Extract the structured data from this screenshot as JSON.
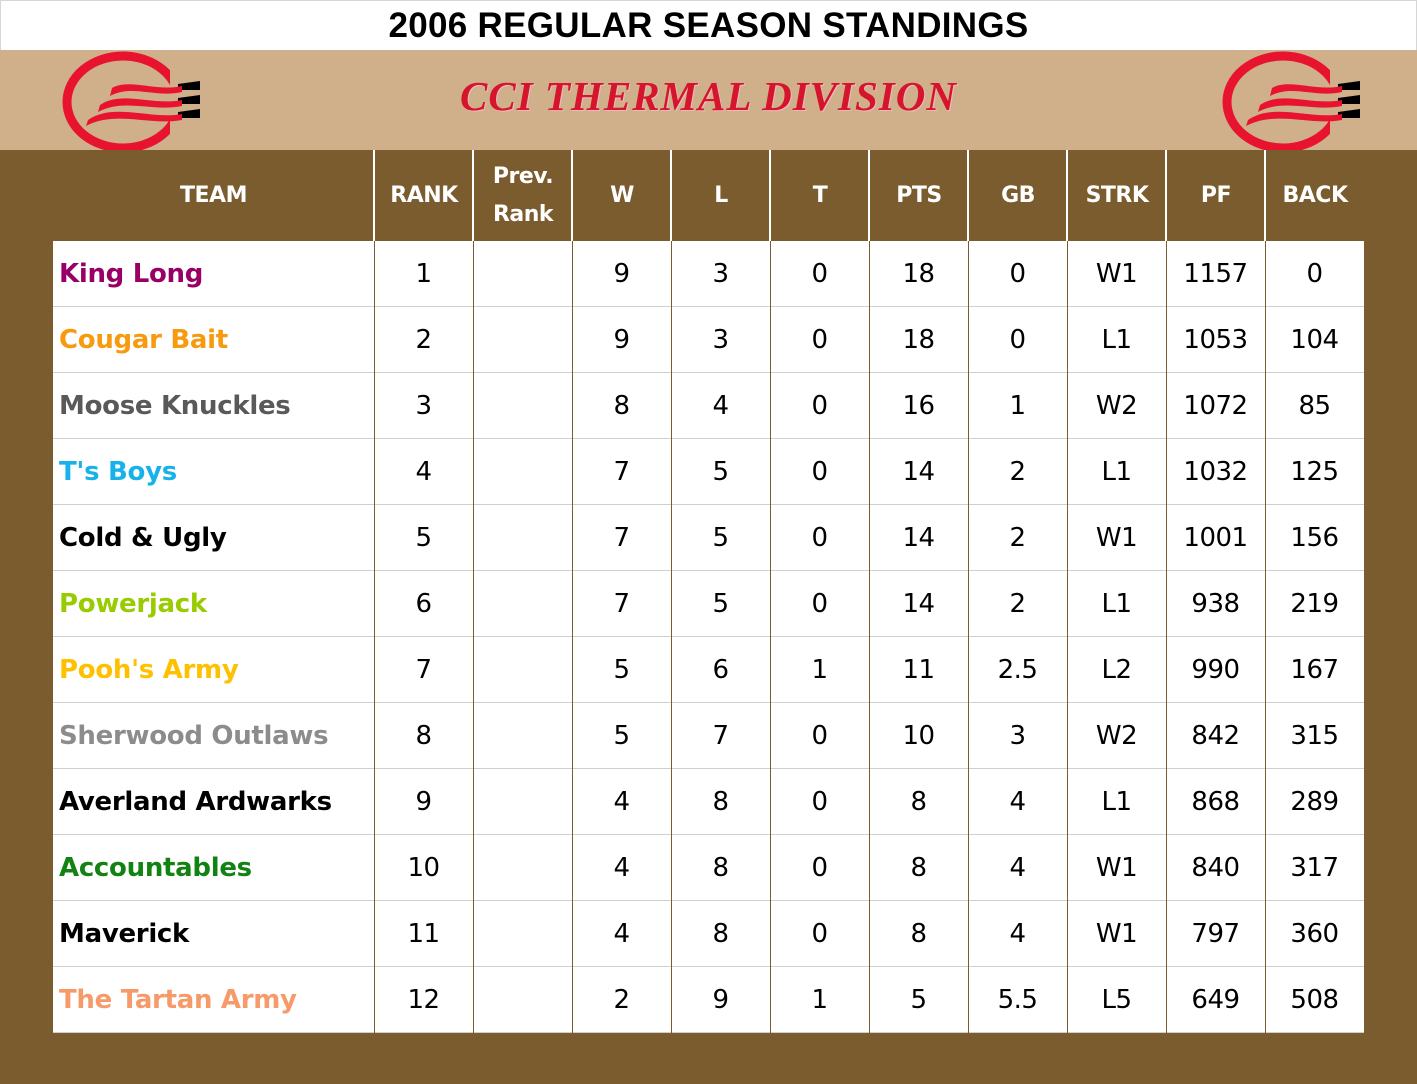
{
  "title": "2006 REGULAR SEASON STANDINGS",
  "banner": {
    "division_name": "CCI THERMAL DIVISION",
    "logo_left": "cci-thermal-logo",
    "logo_right": "cci-thermal-logo",
    "colors": {
      "banner_bg": "#CFB08A",
      "division_text": "#D4152B",
      "logo_red": "#E8132F",
      "body_bg": "#7B5C2E"
    }
  },
  "table": {
    "columns": [
      {
        "key": "team",
        "label": "TEAM"
      },
      {
        "key": "rank",
        "label": "RANK"
      },
      {
        "key": "prev_rank",
        "label": "Prev. Rank",
        "label_line1": "Prev.",
        "label_line2": "Rank"
      },
      {
        "key": "w",
        "label": "W"
      },
      {
        "key": "l",
        "label": "L"
      },
      {
        "key": "t",
        "label": "T"
      },
      {
        "key": "pts",
        "label": "PTS"
      },
      {
        "key": "gb",
        "label": "GB"
      },
      {
        "key": "strk",
        "label": "STRK"
      },
      {
        "key": "pf",
        "label": "PF"
      },
      {
        "key": "back",
        "label": "BACK"
      }
    ],
    "rows": [
      {
        "team": "King Long",
        "color": "#990066",
        "rank": "1",
        "prev_rank": "",
        "w": "9",
        "l": "3",
        "t": "0",
        "pts": "18",
        "gb": "0",
        "strk": "W1",
        "pf": "1157",
        "back": "0"
      },
      {
        "team": "Cougar Bait",
        "color": "#F79A0E",
        "rank": "2",
        "prev_rank": "",
        "w": "9",
        "l": "3",
        "t": "0",
        "pts": "18",
        "gb": "0",
        "strk": "L1",
        "pf": "1053",
        "back": "104"
      },
      {
        "team": "Moose Knuckles",
        "color": "#595959",
        "rank": "3",
        "prev_rank": "",
        "w": "8",
        "l": "4",
        "t": "0",
        "pts": "16",
        "gb": "1",
        "strk": "W2",
        "pf": "1072",
        "back": "85"
      },
      {
        "team": "T's Boys",
        "color": "#17B2EA",
        "rank": "4",
        "prev_rank": "",
        "w": "7",
        "l": "5",
        "t": "0",
        "pts": "14",
        "gb": "2",
        "strk": "L1",
        "pf": "1032",
        "back": "125"
      },
      {
        "team": "Cold & Ugly",
        "color": "#000000",
        "rank": "5",
        "prev_rank": "",
        "w": "7",
        "l": "5",
        "t": "0",
        "pts": "14",
        "gb": "2",
        "strk": "W1",
        "pf": "1001",
        "back": "156"
      },
      {
        "team": "Powerjack",
        "color": "#99CC00",
        "rank": "6",
        "prev_rank": "",
        "w": "7",
        "l": "5",
        "t": "0",
        "pts": "14",
        "gb": "2",
        "strk": "L1",
        "pf": "938",
        "back": "219"
      },
      {
        "team": "Pooh's Army",
        "color": "#FFC000",
        "rank": "7",
        "prev_rank": "",
        "w": "5",
        "l": "6",
        "t": "1",
        "pts": "11",
        "gb": "2.5",
        "strk": "L2",
        "pf": "990",
        "back": "167"
      },
      {
        "team": "Sherwood Outlaws",
        "color": "#8C8C8C",
        "rank": "8",
        "prev_rank": "",
        "w": "5",
        "l": "7",
        "t": "0",
        "pts": "10",
        "gb": "3",
        "strk": "W2",
        "pf": "842",
        "back": "315"
      },
      {
        "team": "Averland Ardwarks",
        "color": "#000000",
        "rank": "9",
        "prev_rank": "",
        "w": "4",
        "l": "8",
        "t": "0",
        "pts": "8",
        "gb": "4",
        "strk": "L1",
        "pf": "868",
        "back": "289"
      },
      {
        "team": "Accountables",
        "color": "#128312",
        "rank": "10",
        "prev_rank": "",
        "w": "4",
        "l": "8",
        "t": "0",
        "pts": "8",
        "gb": "4",
        "strk": "W1",
        "pf": "840",
        "back": "317"
      },
      {
        "team": "Maverick",
        "color": "#000000",
        "rank": "11",
        "prev_rank": "",
        "w": "4",
        "l": "8",
        "t": "0",
        "pts": "8",
        "gb": "4",
        "strk": "W1",
        "pf": "797",
        "back": "360"
      },
      {
        "team": "The Tartan Army",
        "color": "#F79A6A",
        "rank": "12",
        "prev_rank": "",
        "w": "2",
        "l": "9",
        "t": "1",
        "pts": "5",
        "gb": "5.5",
        "strk": "L5",
        "pf": "649",
        "back": "508"
      }
    ]
  }
}
